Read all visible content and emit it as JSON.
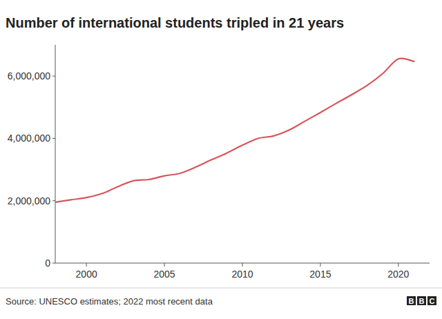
{
  "chart_data": {
    "type": "line",
    "title": "Number of international students tripled in 21 years",
    "source": "Source: UNESCO estimates; 2022 most recent data",
    "logo": "BBC",
    "x": [
      1998,
      1999,
      2000,
      2001,
      2002,
      2003,
      2004,
      2005,
      2006,
      2007,
      2008,
      2009,
      2010,
      2011,
      2012,
      2013,
      2014,
      2015,
      2016,
      2017,
      2018,
      2019,
      2020,
      2021
    ],
    "series": [
      {
        "name": "International students",
        "color": "#d9545a",
        "values": [
          1950000,
          2030000,
          2100000,
          2230000,
          2450000,
          2640000,
          2680000,
          2800000,
          2880000,
          3080000,
          3310000,
          3530000,
          3780000,
          4000000,
          4080000,
          4270000,
          4550000,
          4830000,
          5120000,
          5400000,
          5700000,
          6080000,
          6550000,
          6470000
        ]
      }
    ],
    "xlim": [
      1998,
      2022
    ],
    "xticks": [
      2000,
      2005,
      2010,
      2015,
      2020
    ],
    "ylim": [
      0,
      7000000
    ],
    "yticks": [
      0,
      {
        "value": 2000000,
        "label": "2,000,000"
      },
      {
        "value": 4000000,
        "label": "4,000,000"
      },
      {
        "value": 6000000,
        "label": "6,000,000"
      }
    ],
    "grid": false
  }
}
